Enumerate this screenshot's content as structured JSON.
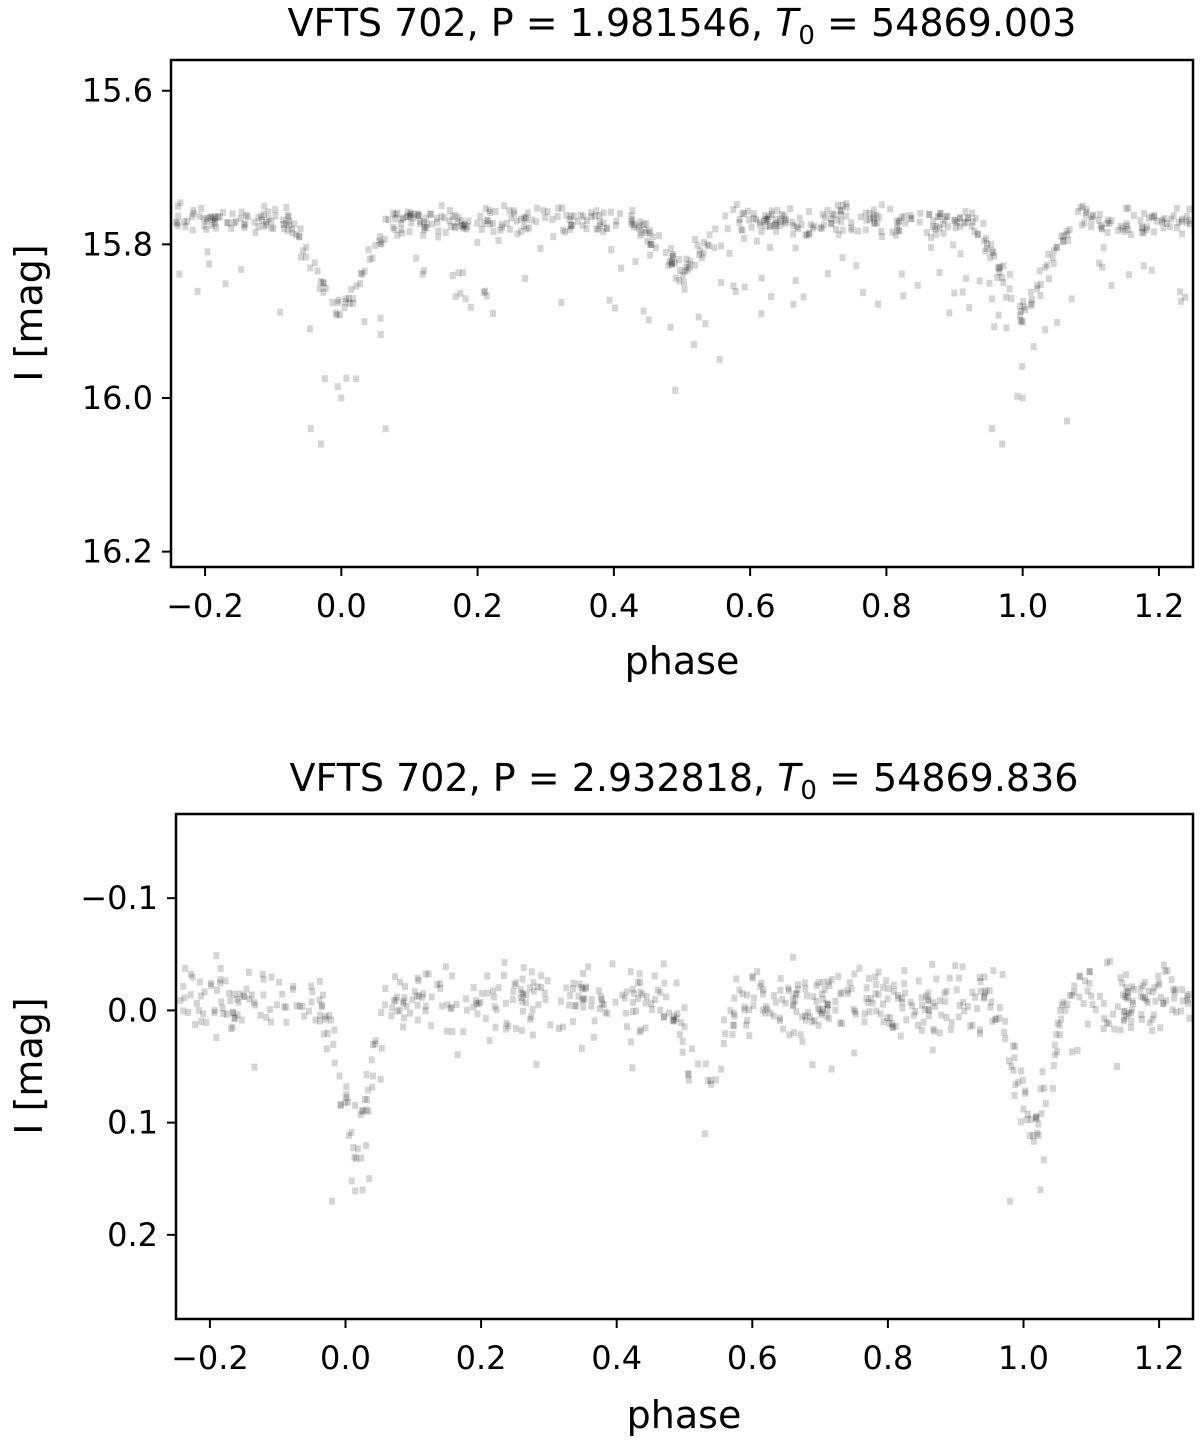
{
  "chart_data": [
    {
      "type": "scatter",
      "title": {
        "prefix": "VFTS 702, P = 1.981546, ",
        "t_sym": "T",
        "t_sub": "0",
        "suffix": " = 54869.003"
      },
      "xlabel": "phase",
      "ylabel": "I [mag]",
      "xlim": [
        -0.25,
        1.25
      ],
      "ylim": [
        16.22,
        15.56
      ],
      "y_inverted": true,
      "xticks": [
        -0.2,
        0.0,
        0.2,
        0.4,
        0.6,
        0.8,
        1.0,
        1.2
      ],
      "xtick_labels": [
        "−0.2",
        "0.0",
        "0.2",
        "0.4",
        "0.6",
        "0.8",
        "1.0",
        "1.2"
      ],
      "yticks": [
        15.6,
        15.8,
        16.0,
        16.2
      ],
      "ytick_labels": [
        "15.6",
        "15.8",
        "16.0",
        "16.2"
      ],
      "grid": false,
      "marker_color": "#000000",
      "marker_opacity": 0.17,
      "curve": {
        "baseline": 15.77,
        "primary_eclipse": {
          "center": 0.0,
          "depth": 0.12,
          "half_width": 0.075
        },
        "secondary_eclipse": {
          "center": 0.5,
          "depth": 0.065,
          "half_width": 0.07
        },
        "scatter": 0.012,
        "faint_tail": {
          "fraction": 0.14,
          "extra_max": 0.12
        },
        "outlier_points": [
          {
            "phase": -0.045,
            "mag": 16.04
          },
          {
            "phase": -0.03,
            "mag": 16.06
          },
          {
            "phase": 0.0,
            "mag": 16.0
          },
          {
            "phase": 0.065,
            "mag": 16.04
          },
          {
            "phase": 0.49,
            "mag": 15.99
          },
          {
            "phase": 0.555,
            "mag": 15.95
          },
          {
            "phase": 0.955,
            "mag": 16.04
          },
          {
            "phase": 0.97,
            "mag": 16.06
          },
          {
            "phase": 1.0,
            "mag": 16.0
          },
          {
            "phase": 1.065,
            "mag": 16.03
          }
        ]
      }
    },
    {
      "type": "scatter",
      "title": {
        "prefix": "VFTS 702, P = 2.932818, ",
        "t_sym": "T",
        "t_sub": "0",
        "suffix": " = 54869.836"
      },
      "xlabel": "phase",
      "ylabel": "I [mag]",
      "xlim": [
        -0.25,
        1.25
      ],
      "ylim": [
        0.275,
        -0.175
      ],
      "y_inverted": true,
      "xticks": [
        -0.2,
        0.0,
        0.2,
        0.4,
        0.6,
        0.8,
        1.0,
        1.2
      ],
      "xtick_labels": [
        "−0.2",
        "0.0",
        "0.2",
        "0.4",
        "0.6",
        "0.8",
        "1.0",
        "1.2"
      ],
      "yticks": [
        -0.1,
        0.0,
        0.1,
        0.2
      ],
      "ytick_labels": [
        "−0.1",
        "0.0",
        "0.1",
        "0.2"
      ],
      "grid": false,
      "marker_color": "#000000",
      "marker_opacity": 0.17,
      "curve": {
        "baseline": -0.01,
        "primary_eclipse": {
          "center": 0.015,
          "depth": 0.13,
          "half_width": 0.05
        },
        "secondary_eclipse": {
          "center": 0.53,
          "depth": 0.085,
          "half_width": 0.05
        },
        "scatter": 0.018,
        "faint_tail": {
          "fraction": 0.06,
          "extra_max": 0.05
        },
        "outlier_points": [
          {
            "phase": -0.02,
            "mag": 0.17
          },
          {
            "phase": 0.025,
            "mag": 0.16
          },
          {
            "phase": 0.035,
            "mag": 0.15
          },
          {
            "phase": 0.53,
            "mag": 0.11
          },
          {
            "phase": 0.98,
            "mag": 0.17
          },
          {
            "phase": 1.025,
            "mag": 0.16
          }
        ]
      }
    }
  ]
}
